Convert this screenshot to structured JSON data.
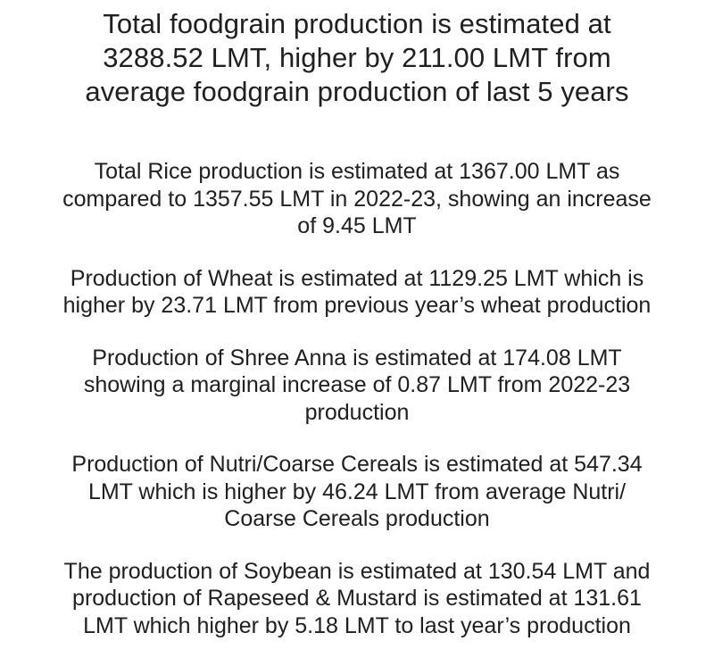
{
  "headline": {
    "line1": "Total foodgrain production is estimated at",
    "line2": "3288.52 LMT, higher by 211.00 LMT from",
    "line3": "average foodgrain production of last 5 years"
  },
  "points": [
    {
      "line1": "Total Rice production is estimated at 1367.00 LMT as",
      "line2": "compared to 1357.55 LMT in 2022-23, showing an increase",
      "line3": "of 9.45 LMT"
    },
    {
      "line1": "Production of Wheat is estimated at 1129.25 LMT which is",
      "line2": "higher by 23.71 LMT from previous year’s wheat production"
    },
    {
      "line1": "Production of Shree Anna is estimated at 174.08 LMT",
      "line2": "showing a marginal increase of 0.87 LMT from 2022-23",
      "line3": "production"
    },
    {
      "line1": "Production of Nutri/Coarse Cereals is estimated at 547.34",
      "line2": "LMT which is higher by 46.24 LMT from average Nutri/",
      "line3": "Coarse Cereals production"
    },
    {
      "line1": "The production of Soybean is estimated at 130.54 LMT and",
      "line2": "production of Rapeseed & Mustard is estimated at 131.61",
      "line3": "LMT which higher by 5.18 LMT to last year’s production"
    }
  ]
}
